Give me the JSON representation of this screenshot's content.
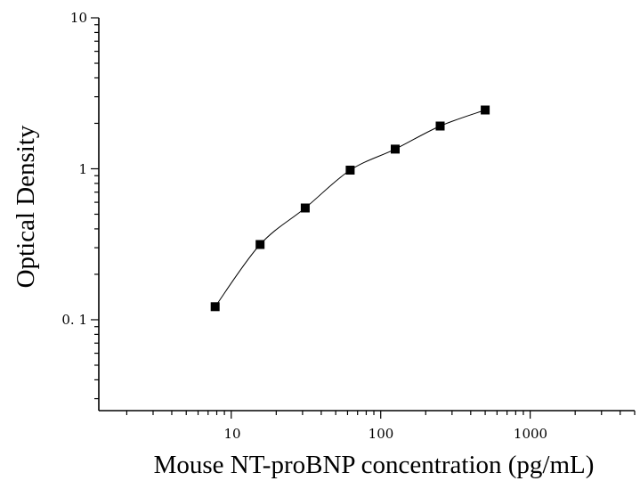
{
  "chart_data": {
    "type": "scatter",
    "x_scale": "log",
    "y_scale": "log",
    "xlabel": "Mouse NT-proBNP concentration (pg/mL)",
    "ylabel": "Optical Density",
    "xlim": [
      1.3,
      5000
    ],
    "ylim": [
      0.025,
      10
    ],
    "x_tick_labels": [
      "10",
      "100",
      "1000"
    ],
    "y_tick_labels": [
      "0. 1",
      "1",
      "10"
    ],
    "grid": false,
    "legend": "none",
    "points": [
      {
        "x": 7.8,
        "y": 0.122
      },
      {
        "x": 15.6,
        "y": 0.315
      },
      {
        "x": 31.25,
        "y": 0.55
      },
      {
        "x": 62.5,
        "y": 0.98
      },
      {
        "x": 125,
        "y": 1.35
      },
      {
        "x": 250,
        "y": 1.92
      },
      {
        "x": 500,
        "y": 2.45
      }
    ],
    "fit": "smooth curve through points"
  }
}
